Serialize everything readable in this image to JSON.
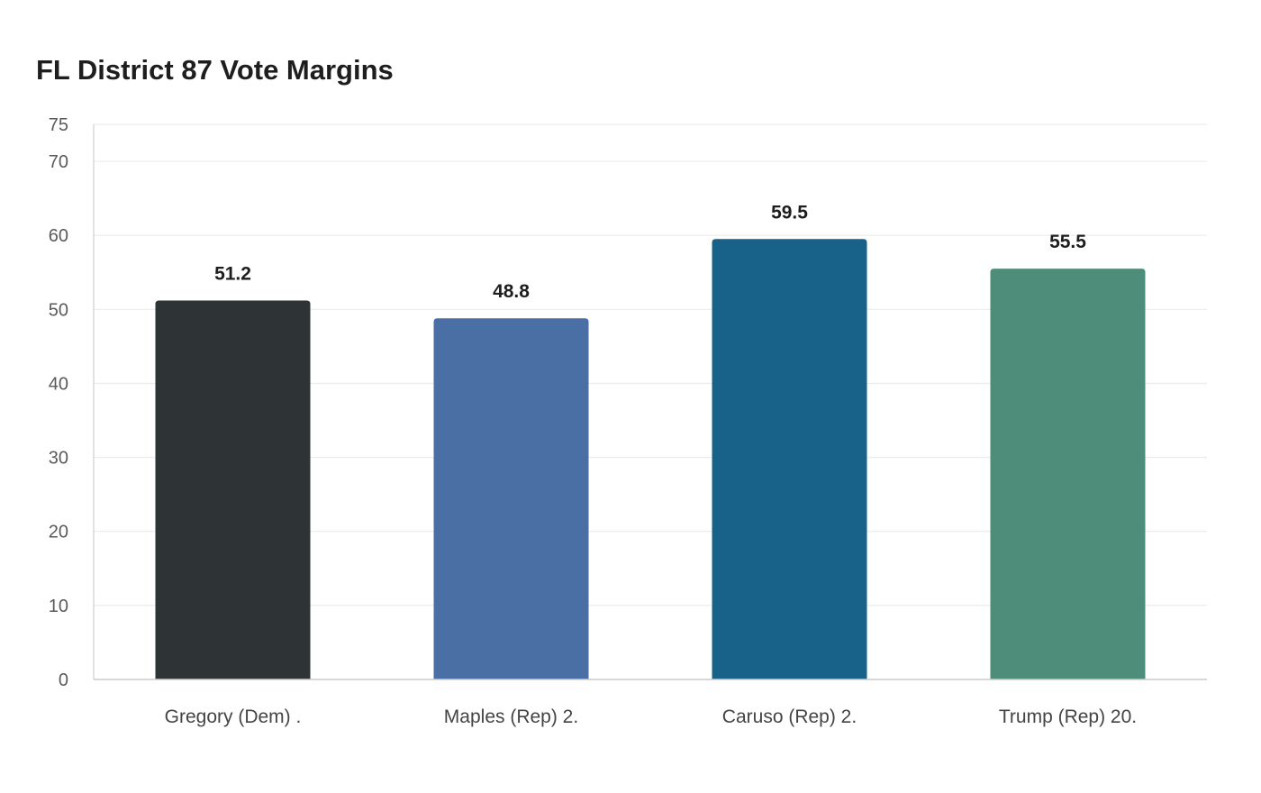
{
  "chart_data": {
    "type": "bar",
    "title": "FL District 87 Vote Margins",
    "xlabel": "",
    "ylabel": "",
    "categories": [
      "Gregory (Dem) .",
      "Maples (Rep) 2.",
      "Caruso (Rep) 2.",
      "Trump (Rep) 20."
    ],
    "values": [
      51.2,
      48.8,
      59.5,
      55.5
    ],
    "value_labels": [
      "51.2",
      "48.8",
      "59.5",
      "55.5"
    ],
    "colors": [
      "#2e3436",
      "#4a6fa5",
      "#186188",
      "#4e8d7a"
    ],
    "ylim": [
      0,
      75
    ],
    "yticks": [
      "0",
      "10",
      "20",
      "30",
      "40",
      "50",
      "60",
      "70",
      "75"
    ],
    "grid": true,
    "legend": "none"
  }
}
